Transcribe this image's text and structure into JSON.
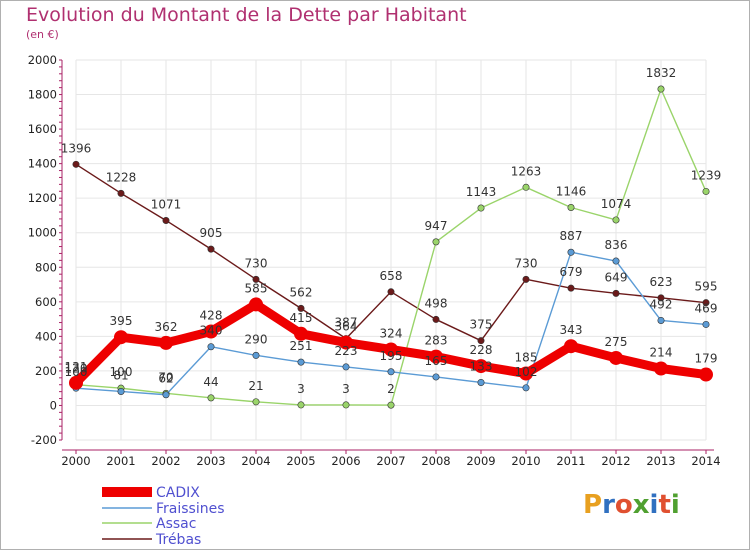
{
  "title": "Evolution du Montant de la Dette par Habitant",
  "unit": "(en €)",
  "logo": {
    "text": "Proxiti",
    "letter_colors": [
      "#e8a020",
      "#3070c0",
      "#e05030",
      "#50a030",
      "#3070c0",
      "#e05030",
      "#50a030"
    ]
  },
  "colors": {
    "cadix": "#ee0000",
    "fraissines": "#5b9bd5",
    "assac": "#9ad46a",
    "trebas": "#6b1a1a",
    "grid": "#e6e6e6",
    "axis": "#aa2266"
  },
  "chart_data": {
    "type": "line",
    "title": "Evolution du Montant de la Dette par Habitant",
    "ylabel": "(en €)",
    "xlabel": "",
    "x": [
      "2000",
      "2001",
      "2002",
      "2003",
      "2004",
      "2005",
      "2006",
      "2007",
      "2008",
      "2009",
      "2010",
      "2011",
      "2012",
      "2013",
      "2014"
    ],
    "ylim": [
      -200,
      2000
    ],
    "yticks": [
      -200,
      0,
      200,
      400,
      600,
      800,
      1000,
      1200,
      1400,
      1600,
      1800,
      2000
    ],
    "grid": true,
    "legend_position": "bottom-left",
    "series": [
      {
        "name": "CADIX",
        "key": "cadix",
        "values": [
          131,
          395,
          362,
          428,
          585,
          415,
          364,
          324,
          283,
          228,
          185,
          343,
          275,
          214,
          179
        ],
        "labels": [
          "131",
          "395",
          "362",
          "428",
          "585",
          "415",
          "364",
          "324",
          "283",
          "228",
          "185",
          "343",
          "275",
          "214",
          "179"
        ]
      },
      {
        "name": "Fraissines",
        "key": "fraissines",
        "values": [
          100,
          81,
          62,
          340,
          290,
          251,
          223,
          195,
          165,
          133,
          102,
          887,
          836,
          492,
          469
        ],
        "labels": [
          "100",
          "81",
          "62",
          "340",
          "290",
          "251",
          "223",
          "195",
          "165",
          "133",
          "102",
          "887",
          "836",
          "492",
          "469"
        ]
      },
      {
        "name": "Assac",
        "key": "assac",
        "values": [
          120,
          100,
          70,
          44,
          21,
          3,
          3,
          2,
          947,
          1143,
          1263,
          1146,
          1074,
          1832,
          1239
        ],
        "labels": [
          "120",
          "100",
          "70",
          "44",
          "21",
          "3",
          "3",
          "2",
          "947",
          "1143",
          "1263",
          "1146",
          "1074",
          "1832",
          "1239"
        ]
      },
      {
        "name": "Trébas",
        "key": "trebas",
        "values": [
          1396,
          1228,
          1071,
          905,
          730,
          562,
          387,
          658,
          498,
          375,
          730,
          679,
          649,
          623,
          595
        ],
        "labels": [
          "1396",
          "1228",
          "1071",
          "905",
          "730",
          "562",
          "387",
          "658",
          "498",
          "375",
          "730",
          "679",
          "649",
          "623",
          "595"
        ]
      }
    ]
  }
}
